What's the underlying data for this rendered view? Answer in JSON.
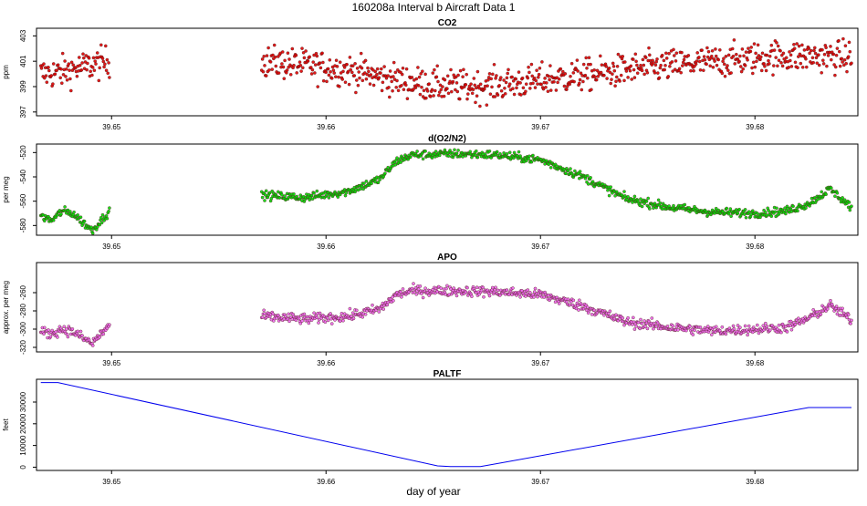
{
  "figure": {
    "title": "160208a   Interval b Aircraft Data 1",
    "xlabel": "day of year"
  },
  "chart_data": [
    {
      "type": "scatter",
      "title": "CO2",
      "ylabel": "ppm",
      "color": "#e00000",
      "xlim": [
        39.6465,
        39.6848
      ],
      "ylim": [
        396.7,
        403.6
      ],
      "yticks": [
        397,
        399,
        401,
        403
      ],
      "xticks": [
        39.65,
        39.66,
        39.67,
        39.68
      ],
      "xtick_labels": [
        "39.65",
        "39.66",
        "39.67",
        "39.68"
      ],
      "segments": [
        {
          "x": [
            39.6467,
            39.6475,
            39.6483,
            39.6491,
            39.6499
          ],
          "y": [
            400.0,
            400.1,
            400.4,
            400.7,
            401.0
          ]
        },
        {
          "x": [
            39.657,
            39.659,
            39.661,
            39.663,
            39.665,
            39.667,
            39.669,
            39.671,
            39.673,
            39.675,
            39.677,
            39.679,
            39.681,
            39.683,
            39.6845
          ],
          "y": [
            401.0,
            400.7,
            400.3,
            399.6,
            399.1,
            399.0,
            399.3,
            399.7,
            400.1,
            400.5,
            400.8,
            401.1,
            401.4,
            401.4,
            401.3
          ]
        }
      ],
      "spread": 0.9
    },
    {
      "type": "scatter",
      "title": "d(O2/N2)",
      "ylabel": "per meg",
      "color": "#00dd00",
      "xlim": [
        39.6465,
        39.6848
      ],
      "ylim": [
        -588,
        -513
      ],
      "yticks": [
        -580,
        -560,
        -540,
        -520
      ],
      "xticks": [
        39.65,
        39.66,
        39.67,
        39.68
      ],
      "xtick_labels": [
        "39.65",
        "39.66",
        "39.67",
        "39.68"
      ],
      "segments": [
        {
          "x": [
            39.6467,
            39.6472,
            39.6477,
            39.6482,
            39.6487,
            39.6491,
            39.6495,
            39.6499
          ],
          "y": [
            -572,
            -576,
            -568,
            -570,
            -578,
            -584,
            -576,
            -568
          ]
        },
        {
          "x": [
            39.657,
            39.659,
            39.661,
            39.6625,
            39.6633,
            39.664,
            39.666,
            39.668,
            39.67,
            39.672,
            39.674,
            39.676,
            39.678,
            39.68,
            39.6815,
            39.6825,
            39.6835,
            39.6845
          ],
          "y": [
            -555,
            -557,
            -552,
            -542,
            -527,
            -522,
            -521,
            -522,
            -526,
            -540,
            -558,
            -565,
            -569,
            -570,
            -568,
            -562,
            -550,
            -565
          ]
        }
      ],
      "spread": 2.5
    },
    {
      "type": "scatter",
      "title": "APO",
      "ylabel": "approx. per meg",
      "color": "#ee66ee",
      "xlim": [
        39.6465,
        39.6848
      ],
      "ylim": [
        -325,
        -227
      ],
      "yticks": [
        -320,
        -300,
        -280,
        -260
      ],
      "xticks": [
        39.65,
        39.66,
        39.67,
        39.68
      ],
      "xtick_labels": [
        "39.65",
        "39.66",
        "39.67",
        "39.68"
      ],
      "segments": [
        {
          "x": [
            39.6467,
            39.6472,
            39.6477,
            39.6482,
            39.6487,
            39.6491,
            39.6495,
            39.6499
          ],
          "y": [
            -303,
            -305,
            -300,
            -303,
            -310,
            -316,
            -305,
            -296
          ]
        },
        {
          "x": [
            39.657,
            39.659,
            39.661,
            39.6625,
            39.6633,
            39.664,
            39.666,
            39.668,
            39.67,
            39.672,
            39.674,
            39.676,
            39.678,
            39.68,
            39.6815,
            39.6825,
            39.6835,
            39.6845
          ],
          "y": [
            -286,
            -289,
            -286,
            -278,
            -262,
            -258,
            -258,
            -259,
            -262,
            -275,
            -292,
            -298,
            -302,
            -300,
            -298,
            -288,
            -274,
            -290
          ]
        }
      ],
      "spread": 4
    },
    {
      "type": "line",
      "title": "PALTF",
      "ylabel": "feet",
      "xlabel": "day of year",
      "color": "#0000ee",
      "xlim": [
        39.6465,
        39.6848
      ],
      "ylim": [
        -1500,
        40500
      ],
      "yticks": [
        0,
        10000,
        20000,
        30000
      ],
      "xticks": [
        39.65,
        39.66,
        39.67,
        39.68
      ],
      "xtick_labels": [
        "39.65",
        "39.66",
        "39.67",
        "39.68"
      ],
      "x": [
        39.6467,
        39.6475,
        39.6652,
        39.6658,
        39.6672,
        39.6825,
        39.6845
      ],
      "y": [
        39000,
        39000,
        600,
        250,
        250,
        27500,
        27500
      ]
    }
  ]
}
